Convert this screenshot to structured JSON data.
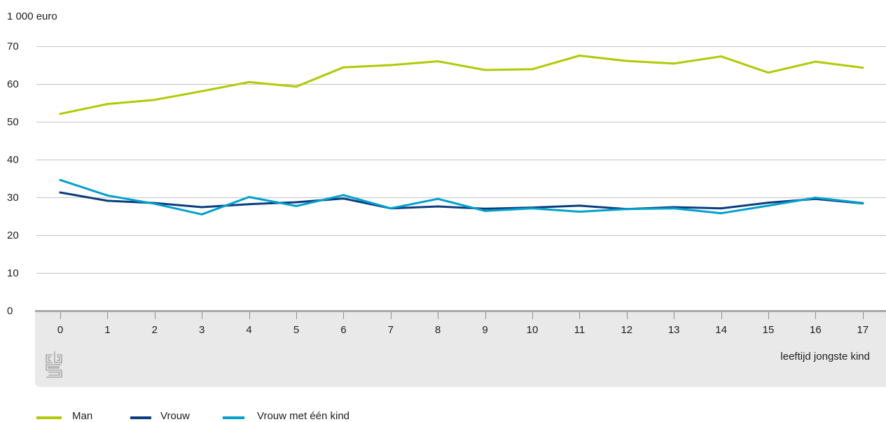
{
  "chart_data": {
    "type": "line",
    "ylabel": "1 000 euro",
    "xlabel": "leeftijd jongste kind",
    "ylim": [
      0,
      70
    ],
    "yticks": [
      0,
      10,
      20,
      30,
      40,
      50,
      60,
      70
    ],
    "categories": [
      "0",
      "1",
      "2",
      "3",
      "4",
      "5",
      "6",
      "7",
      "8",
      "9",
      "10",
      "11",
      "12",
      "13",
      "14",
      "15",
      "16",
      "17"
    ],
    "grid": true,
    "legend_position": "bottom-left",
    "series": [
      {
        "name": "Man",
        "color": "#afcb05",
        "values": [
          52.1,
          54.7,
          55.8,
          58.1,
          60.5,
          59.3,
          64.4,
          65.0,
          66.0,
          63.7,
          63.9,
          67.5,
          66.1,
          65.4,
          67.3,
          63.0,
          65.9,
          64.3
        ]
      },
      {
        "name": "Vrouw",
        "color": "#0b3d7e",
        "values": [
          31.3,
          29.1,
          28.5,
          27.4,
          28.2,
          28.7,
          29.7,
          27.1,
          27.6,
          27.0,
          27.3,
          27.8,
          26.9,
          27.4,
          27.1,
          28.6,
          29.6,
          28.4
        ]
      },
      {
        "name": "Vrouw met één kind",
        "color": "#00a1cd",
        "values": [
          34.6,
          30.5,
          28.3,
          25.5,
          30.1,
          27.7,
          30.6,
          27.1,
          29.6,
          26.4,
          27.1,
          26.2,
          26.9,
          27.1,
          25.8,
          27.8,
          29.9,
          28.5
        ]
      }
    ]
  },
  "colors": {
    "grid": "#c4c4c4",
    "axis": "#a9a9a9",
    "panel": "#e9e9e9",
    "tick": "#8f8f8f",
    "logo": "#9b9b9b"
  }
}
